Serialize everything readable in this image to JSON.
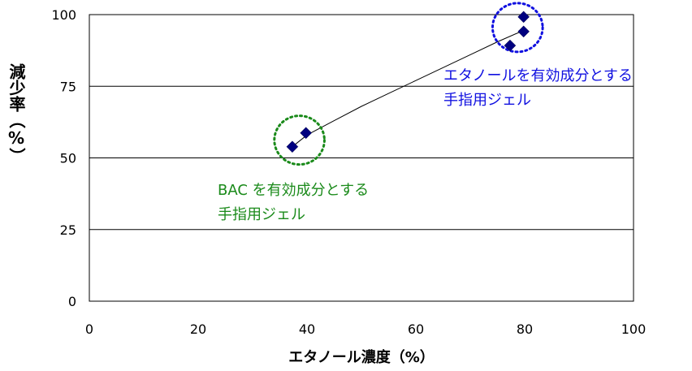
{
  "chart_data": {
    "type": "scatter",
    "xlabel": "エタノール濃度（%）",
    "ylabel": "減少率（%）",
    "xlim": [
      0,
      100
    ],
    "ylim": [
      0,
      100
    ],
    "xticks": [
      "0",
      "20",
      "40",
      "60",
      "80",
      "100"
    ],
    "yticks": [
      "0",
      "25",
      "50",
      "75",
      "100"
    ],
    "grid": "horizontal",
    "series": [
      {
        "color": "#00007f",
        "marker": "diamond",
        "points": [
          {
            "x": 37.3,
            "y": 53.9
          },
          {
            "x": 39.8,
            "y": 58.7
          },
          {
            "x": 77.3,
            "y": 89.2
          },
          {
            "x": 79.8,
            "y": 94.1
          },
          {
            "x": 79.8,
            "y": 99.2
          }
        ]
      }
    ],
    "trendline": {
      "type": "fitted-curve",
      "color": "#000000",
      "points": [
        {
          "x": 37.3,
          "y": 53.9
        },
        {
          "x": 40,
          "y": 58.0
        },
        {
          "x": 45,
          "y": 63.0
        },
        {
          "x": 50,
          "y": 68.0
        },
        {
          "x": 55,
          "y": 72.5
        },
        {
          "x": 60,
          "y": 77.0
        },
        {
          "x": 65,
          "y": 81.5
        },
        {
          "x": 70,
          "y": 86.0
        },
        {
          "x": 75,
          "y": 90.5
        },
        {
          "x": 79.8,
          "y": 94.5
        }
      ]
    },
    "annotations": [
      {
        "lines": [
          "BAC を有効成分とする",
          "手指用ジェル"
        ],
        "color": "#1a8a1a",
        "circle": {
          "cx": 38.6,
          "cy": 56.2,
          "rx": 4.6,
          "ry": 8.5
        }
      },
      {
        "lines": [
          "エタノールを有効成分とする",
          "手指用ジェル"
        ],
        "color": "#1010e0",
        "circle": {
          "cx": 78.7,
          "cy": 95.5,
          "rx": 4.6,
          "ry": 8.5
        }
      }
    ]
  }
}
